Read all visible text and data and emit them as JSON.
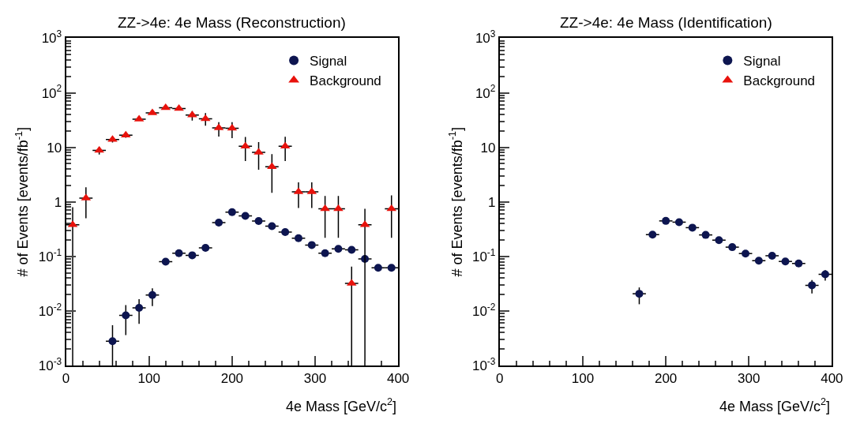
{
  "chart_data": [
    {
      "type": "scatter",
      "title": "ZZ->4e: 4e Mass (Reconstruction)",
      "xlabel": "4e Mass [GeV/c$^{2}$]",
      "ylabel": "# of Events [events/fb$^{-1}$]",
      "x": [
        8,
        24,
        40,
        56,
        72,
        88,
        104,
        120,
        136,
        152,
        168,
        184,
        200,
        216,
        232,
        248,
        264,
        280,
        296,
        312,
        328,
        344,
        360,
        376,
        392
      ],
      "series": [
        {
          "name": "Signal",
          "color": "#0d1550",
          "marker": "circle",
          "values": [
            null,
            null,
            null,
            0.0028,
            0.0083,
            0.0114,
            0.0196,
            0.08,
            0.115,
            0.105,
            0.144,
            0.417,
            0.65,
            0.555,
            0.447,
            0.36,
            0.28,
            0.216,
            0.162,
            0.115,
            0.138,
            0.132,
            0.09,
            0.062,
            0.062
          ],
          "errors": [
            null,
            null,
            null,
            [
              0.001,
              0.0055
            ],
            [
              0.0036,
              0.0128
            ],
            [
              0.0058,
              0.0165
            ],
            [
              0.0123,
              0.026
            ],
            null,
            null,
            null,
            null,
            null,
            null,
            null,
            null,
            null,
            null,
            null,
            null,
            null,
            null,
            null,
            null,
            null,
            null
          ],
          "xerrors": [
            null,
            null,
            null,
            8,
            8,
            8,
            8,
            8,
            8,
            8,
            8,
            8,
            8,
            8,
            8,
            8,
            8,
            8,
            8,
            8,
            8,
            8,
            8,
            8,
            8
          ]
        },
        {
          "name": "Background",
          "color": "#e8120c",
          "marker": "triangle",
          "values": [
            0.38,
            1.17,
            8.8,
            13.9,
            16.7,
            32.8,
            43,
            53,
            51.5,
            39,
            33.5,
            22.8,
            22.3,
            10.5,
            8.1,
            4.4,
            10.5,
            1.53,
            1.53,
            0.75,
            0.75,
            0.032,
            0.38,
            null,
            0.75
          ],
          "errors": [
            [
              0.001,
              0.8
            ],
            [
              0.5,
              1.85
            ],
            [
              7.4,
              10.2
            ],
            [
              12.3,
              15.6
            ],
            [
              15,
              18.5
            ],
            null,
            null,
            null,
            null,
            [
              31,
              46
            ],
            [
              25,
              42.5
            ],
            [
              15.8,
              29
            ],
            [
              14.7,
              29
            ],
            [
              5.6,
              15.5
            ],
            [
              3.9,
              12.5
            ],
            [
              1.47,
              7.5
            ],
            [
              5.6,
              15.6
            ],
            [
              0.77,
              2.28
            ],
            [
              0.77,
              2.28
            ],
            [
              0.22,
              1.29
            ],
            [
              0.22,
              1.29
            ],
            [
              0.001,
              0.065
            ],
            [
              0.001,
              0.75
            ],
            null,
            [
              0.22,
              1.32
            ]
          ],
          "xerrors": [
            8,
            8,
            8,
            8,
            8,
            8,
            8,
            8,
            8,
            8,
            8,
            8,
            8,
            8,
            8,
            8,
            8,
            8,
            8,
            8,
            8,
            8,
            8,
            null,
            8
          ]
        }
      ],
      "xlim": [
        0,
        400
      ],
      "xticks": [
        0,
        100,
        200,
        300,
        400
      ],
      "ylim": [
        0.001,
        1000
      ],
      "yticks": [
        {
          "value": 0.001,
          "label": "10$^{-3}$"
        },
        {
          "value": 0.01,
          "label": "10$^{-2}$"
        },
        {
          "value": 0.1,
          "label": "10$^{-1}$"
        },
        1,
        10,
        {
          "value": 100,
          "label": "10$^{2}$"
        },
        {
          "value": 1000,
          "label": "10$^{3}$"
        }
      ],
      "log": "y",
      "legend": "top right"
    },
    {
      "type": "scatter",
      "title": "ZZ->4e: 4e Mass (Identification)",
      "xlabel": "4e Mass [GeV/c$^{2}$]",
      "ylabel": "# of Events [events/fb$^{-1}$]",
      "x": [
        168,
        184,
        200,
        216,
        232,
        248,
        264,
        280,
        296,
        312,
        328,
        344,
        360,
        376,
        392
      ],
      "series": [
        {
          "name": "Signal",
          "color": "#0d1550",
          "marker": "circle",
          "values": [
            0.0207,
            0.251,
            0.448,
            0.425,
            0.337,
            0.248,
            0.199,
            0.148,
            0.113,
            0.0836,
            0.103,
            0.081,
            0.0744,
            0.0296,
            0.047
          ],
          "errors": [
            [
              0.0133,
              0.027
            ],
            null,
            null,
            null,
            null,
            null,
            null,
            null,
            null,
            null,
            null,
            null,
            null,
            [
              0.021,
              0.037
            ],
            [
              0.036,
              0.056
            ]
          ],
          "xerrors": [
            8,
            8,
            8,
            8,
            8,
            8,
            8,
            8,
            8,
            8,
            8,
            8,
            8,
            8,
            8
          ]
        },
        {
          "name": "Background",
          "color": "#e8120c",
          "marker": "triangle",
          "values": [
            null,
            null,
            null,
            null,
            null,
            null,
            null,
            null,
            null,
            null,
            null,
            null,
            null,
            null,
            null
          ]
        }
      ],
      "xlim": [
        0,
        400
      ],
      "xticks": [
        0,
        100,
        200,
        300,
        400
      ],
      "ylim": [
        0.001,
        1000
      ],
      "yticks": [
        {
          "value": 0.001,
          "label": "10$^{-3}$"
        },
        {
          "value": 0.01,
          "label": "10$^{-2}$"
        },
        {
          "value": 0.1,
          "label": "10$^{-1}$"
        },
        1,
        10,
        {
          "value": 100,
          "label": "10$^{2}$"
        },
        {
          "value": 1000,
          "label": "10$^{3}$"
        }
      ],
      "log": "y",
      "legend": "top right"
    }
  ]
}
